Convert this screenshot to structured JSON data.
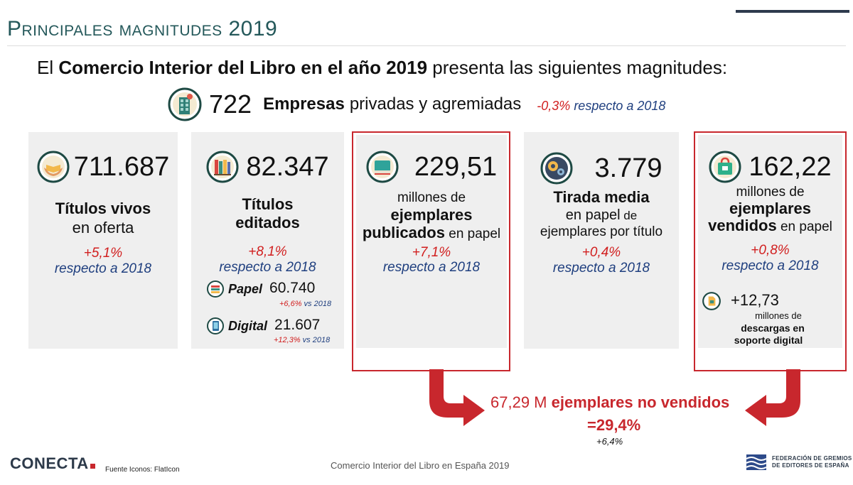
{
  "slide": {
    "title": "Principales magnitudes 2019",
    "intro": {
      "pre": "El ",
      "bold": "Comercio Interior del Libro en el año 2019",
      "post": " presenta las siguientes magnitudes:"
    }
  },
  "empresas": {
    "icon": "building-icon",
    "value": "722",
    "bold": "Empresas",
    "rest": "privadas y agremiadas",
    "change": "-0,3%",
    "change_ref": " respecto a 2018"
  },
  "cards": {
    "titulos_vivos": {
      "icon": "hands-book-icon",
      "value": "711.687",
      "label_bold": "Títulos vivos",
      "label_rest": "en oferta",
      "change": "+5,1%",
      "change_ref": "respecto a 2018"
    },
    "titulos_editados": {
      "icon": "books-shelf-icon",
      "value": "82.347",
      "label_line1": "Títulos",
      "label_line2": "editados",
      "change": "+8,1%",
      "change_ref": "respecto a 2018",
      "papel": {
        "icon": "paper-book-icon",
        "name": "Papel",
        "value": "60.740",
        "change": "+6,6%",
        "change_ref": " vs 2018"
      },
      "digital": {
        "icon": "tablet-icon",
        "name": "Digital",
        "value": "21.607",
        "change": "+12,3%",
        "change_ref": " vs 2018"
      }
    },
    "ejemplares_publicados": {
      "icon": "book-icon",
      "value": "229,51",
      "label_line1": "millones de",
      "label_bold1": "ejemplares",
      "label_bold2": "publicados",
      "label_rest2": " en papel",
      "change": "+7,1%",
      "change_ref": "respecto a 2018"
    },
    "tirada_media": {
      "icon": "gears-icon",
      "value": "3.779",
      "label_bold": "Tirada media",
      "label_line2a": "en papel",
      "label_line2b": " de",
      "label_line3": "ejemplares por título",
      "change": "+0,4%",
      "change_ref": "respecto a 2018"
    },
    "ejemplares_vendidos": {
      "icon": "shopping-bag-icon",
      "value": "162,22",
      "label_line1": "millones de",
      "label_bold1": "ejemplares",
      "label_bold2": "vendidos",
      "label_rest2": " en papel",
      "change": "+0,8%",
      "change_ref": "respecto a 2018",
      "descargas": {
        "icon": "sd-card-icon",
        "value": "+12,73",
        "line1": "millones de",
        "line2": "descargas en",
        "line3": "soporte digital"
      }
    }
  },
  "unsold": {
    "value": "67,29 M",
    "bold": "ejemplares no vendidos",
    "pct": "=29,4%",
    "change": "+6,4%"
  },
  "footer": {
    "logo": "CONECTA",
    "source": "Fuente Iconos: FlatIcon",
    "center": "Comercio Interior del Libro en España 2019",
    "fge_line1": "FEDERACIÓN DE GREMIOS",
    "fge_line2": "DE EDITORES DE ESPAÑA"
  },
  "colors": {
    "accent_red": "#c8272d",
    "change_red": "#d11f1f",
    "ref_blue": "#1f3f7f",
    "title_green": "#24585a"
  }
}
